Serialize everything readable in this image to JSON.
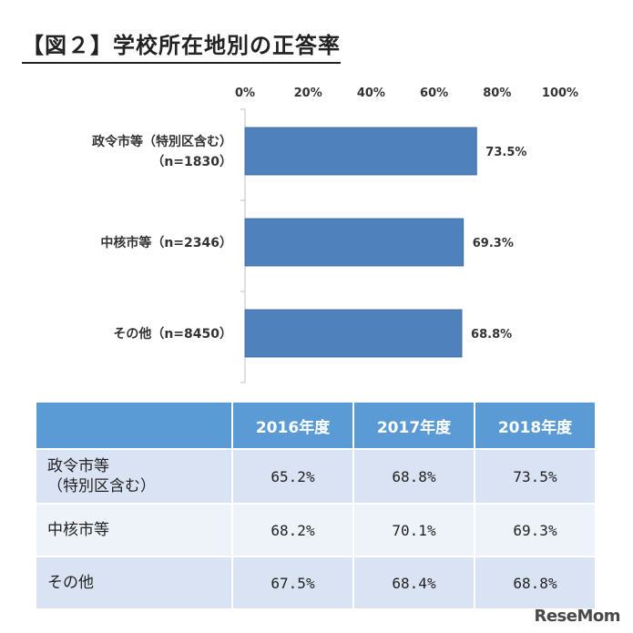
{
  "title": "【図２】学校所在地別の正答率",
  "chart_data": {
    "type": "bar",
    "orientation": "horizontal",
    "categories": [
      "政令市等（特別区含む）\n（n=1830）",
      "中核市等（n=2346）",
      "その他（n=8450）"
    ],
    "values": [
      73.5,
      69.3,
      68.8
    ],
    "value_labels": [
      "73.5%",
      "69.3%",
      "68.8%"
    ],
    "xlim": [
      0,
      100
    ],
    "x_ticks": [
      "0%",
      "20%",
      "40%",
      "60%",
      "80%",
      "100%"
    ],
    "x_tick_values": [
      0,
      20,
      40,
      60,
      80,
      100
    ],
    "axis_position": "top",
    "grid": false,
    "bar_color": "#4f81bd"
  },
  "table": {
    "headers": [
      "",
      "2016年度",
      "2017年度",
      "2018年度"
    ],
    "rows": [
      {
        "label": "政令市等\n（特別区含む）",
        "values": [
          "65.2%",
          "68.8%",
          "73.5%"
        ]
      },
      {
        "label": "中核市等",
        "values": [
          "68.2%",
          "70.1%",
          "69.3%"
        ]
      },
      {
        "label": "その他",
        "values": [
          "67.5%",
          "68.4%",
          "68.8%"
        ]
      }
    ]
  },
  "watermark": "ReseMom"
}
